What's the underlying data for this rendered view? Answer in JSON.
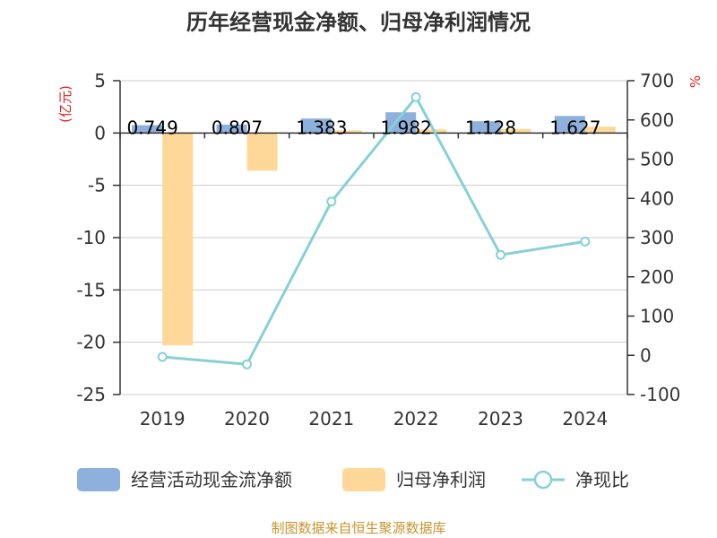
{
  "chart_data": {
    "type": "bar",
    "title": "历年经营现金净额、归母净利润情况",
    "categories": [
      "2019",
      "2020",
      "2021",
      "2022",
      "2023",
      "2024"
    ],
    "series": [
      {
        "name": "经营活动现金流净额",
        "kind": "bar",
        "axis": "left",
        "color": "#8eb0dc",
        "values": [
          0.749,
          0.807,
          1.383,
          1.982,
          1.128,
          1.627
        ],
        "labels": [
          "0.749",
          "0.807",
          "1.383",
          "1.982",
          "1.128",
          "1.627"
        ]
      },
      {
        "name": "归母净利润",
        "kind": "bar",
        "axis": "left",
        "color": "#fdd898",
        "values": [
          -20.3,
          -3.6,
          0.25,
          0.35,
          0.38,
          0.6
        ]
      },
      {
        "name": "净现比",
        "kind": "line",
        "axis": "right",
        "color": "#86d1d6",
        "values": [
          -4,
          -23,
          392,
          658,
          256,
          290
        ]
      }
    ],
    "left_axis": {
      "label": "(亿元)",
      "min": -25,
      "max": 5,
      "step": 5,
      "ticks": [
        "5",
        "0",
        "-5",
        "-10",
        "-15",
        "-20",
        "-25"
      ]
    },
    "right_axis": {
      "label": "%",
      "min": -100,
      "max": 700,
      "step": 100,
      "ticks": [
        "700",
        "600",
        "500",
        "400",
        "300",
        "200",
        "100",
        "0",
        "-100"
      ]
    },
    "legend_position": "bottom",
    "grid": true
  },
  "source_text": "制图数据来自恒生聚源数据库",
  "colors": {
    "unit_label": "#e02020",
    "source": "#c8942e",
    "axis": "#333333",
    "grid": "#cccccc"
  }
}
